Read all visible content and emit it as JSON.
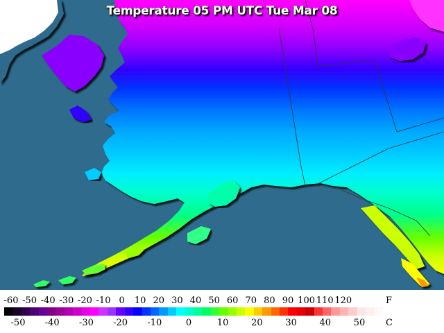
{
  "title": "Temperature 05 PM UTC Tue Mar 08",
  "colors": {
    "ocean": "#2e6b8c",
    "land_unmodeled": "#2d6a8c",
    "highland": "#ffffff"
  },
  "legend": {
    "fahrenheit_unit": "F",
    "celsius_unit": "C",
    "fahrenheit_ticks": [
      "-60",
      "-50",
      "-40",
      "-30",
      "-20",
      "-10",
      "0",
      "10",
      "20",
      "30",
      "40",
      "50",
      "60",
      "70",
      "80",
      "90",
      "100",
      "110",
      "120"
    ],
    "celsius_ticks": [
      "-50",
      "-40",
      "-30",
      "-20",
      "-10",
      "0",
      "10",
      "20",
      "30",
      "40",
      "50"
    ],
    "colorbar": [
      "#000000",
      "#1a0026",
      "#33004c",
      "#4d0073",
      "#660099",
      "#800080",
      "#990099",
      "#b300b3",
      "#cc00cc",
      "#e600e6",
      "#ff00ff",
      "#cc33ff",
      "#9933ff",
      "#6600ff",
      "#3300ff",
      "#0000ff",
      "#0033ff",
      "#0066ff",
      "#0099ff",
      "#00ccff",
      "#00ffff",
      "#00ffcc",
      "#00ff99",
      "#00ff66",
      "#33ff33",
      "#66ff00",
      "#99ff00",
      "#ccff00",
      "#ffff00",
      "#ffcc00",
      "#ff9900",
      "#ff6600",
      "#ff3300",
      "#ff0000",
      "#e60000",
      "#cc0000",
      "#ff3333",
      "#ff6666",
      "#ff9999",
      "#ffb3b3",
      "#ffcccc",
      "#ffe6e6",
      "#fff0f0",
      "#fff8f8"
    ]
  }
}
